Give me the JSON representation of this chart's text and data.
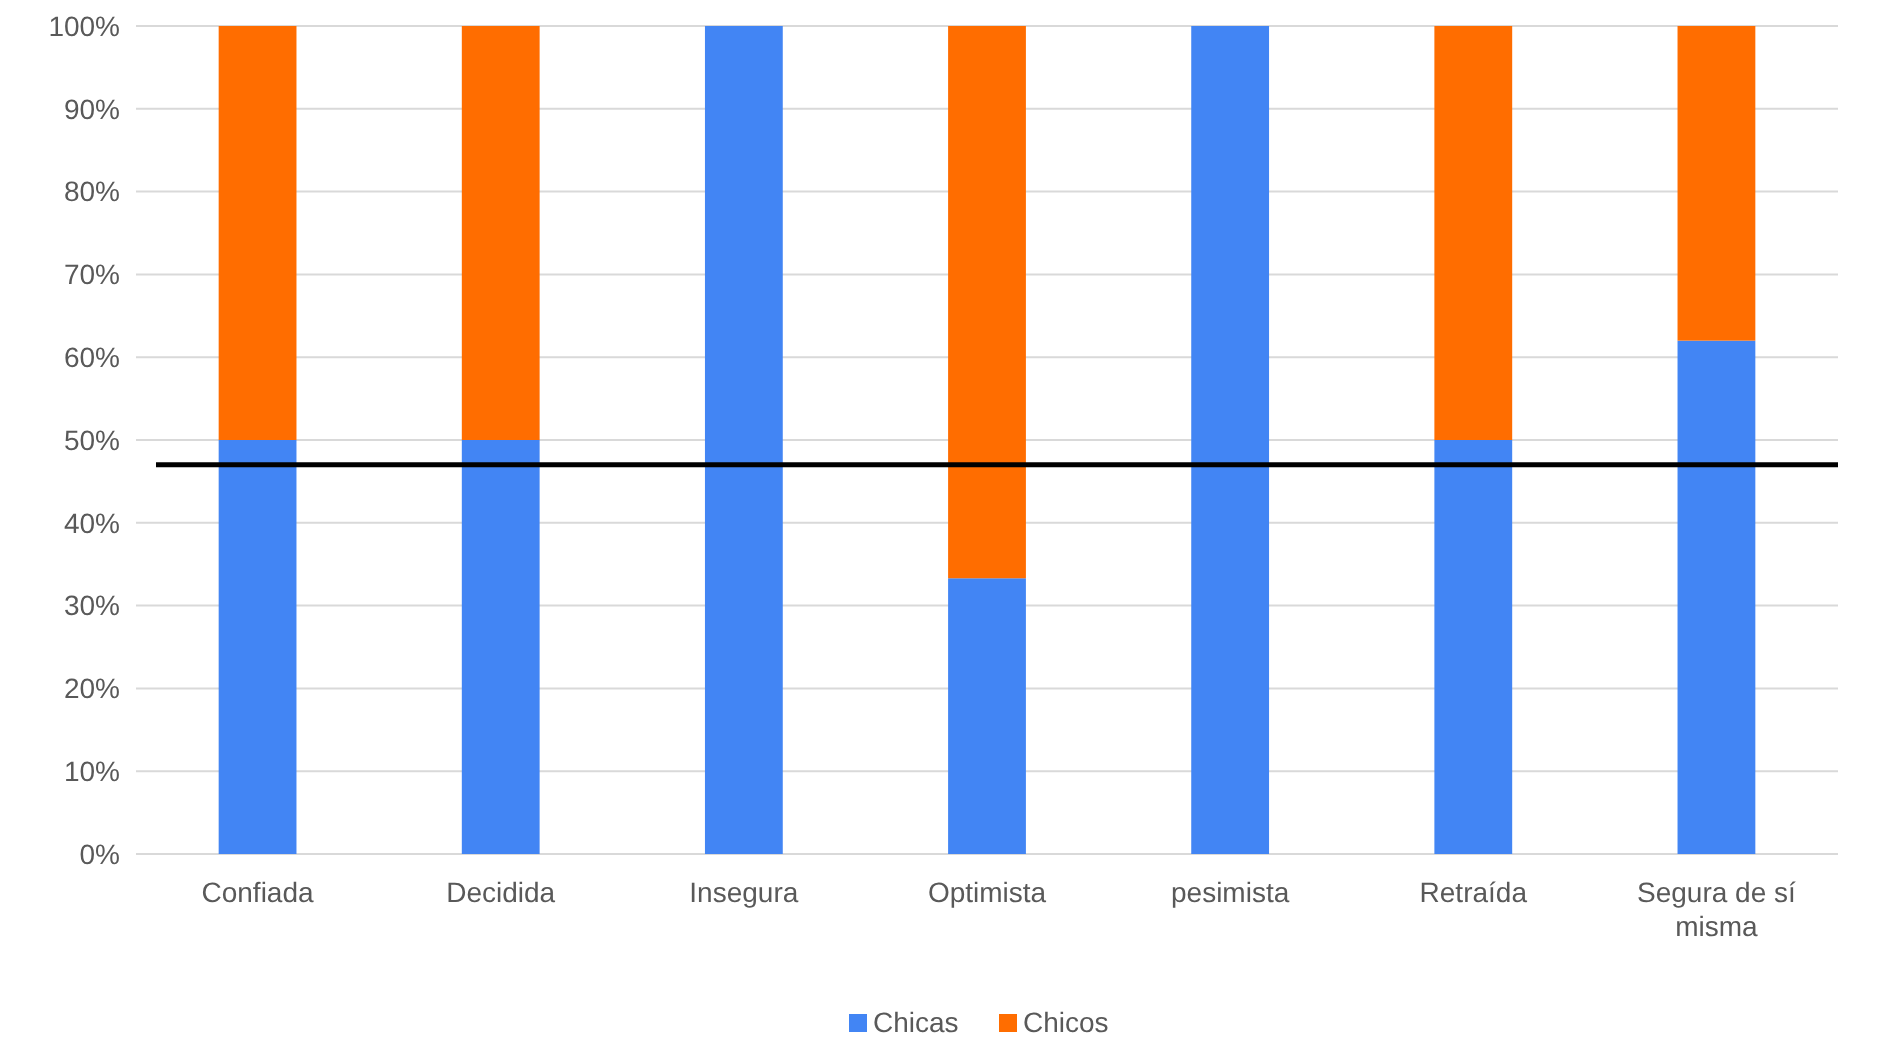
{
  "chart_data": {
    "type": "bar",
    "stacked": true,
    "categories": [
      "Confiada",
      "Decidida",
      "Insegura",
      "Optimista",
      "pesimista",
      "Retraída",
      "Segura de sí misma"
    ],
    "series": [
      {
        "name": "Chicas",
        "color": "#4285f4",
        "values": [
          50,
          50,
          100,
          33.3,
          100,
          50,
          62
        ]
      },
      {
        "name": "Chicos",
        "color": "#ff6d00",
        "values": [
          50,
          50,
          0,
          66.7,
          0,
          50,
          38
        ]
      }
    ],
    "ylim": [
      0,
      100
    ],
    "yticks": [
      {
        "value": 0,
        "label": "0%"
      },
      {
        "value": 10,
        "label": "10%"
      },
      {
        "value": 20,
        "label": "20%"
      },
      {
        "value": 30,
        "label": "30%"
      },
      {
        "value": 40,
        "label": "40%"
      },
      {
        "value": 50,
        "label": "50%"
      },
      {
        "value": 60,
        "label": "60%"
      },
      {
        "value": 70,
        "label": "70%"
      },
      {
        "value": 80,
        "label": "80%"
      },
      {
        "value": 90,
        "label": "90%"
      },
      {
        "value": 100,
        "label": "100%"
      }
    ],
    "grid": "y",
    "legend": "bottom",
    "ref_lines": [
      {
        "axis": "y",
        "value": 47,
        "color": "#000000"
      }
    ]
  }
}
